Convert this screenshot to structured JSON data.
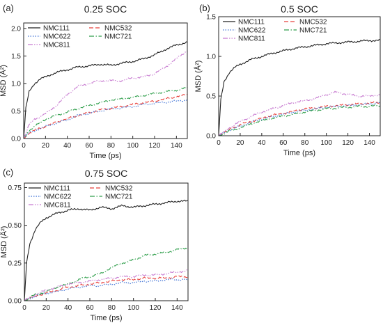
{
  "chart_data": [
    {
      "type": "line",
      "panel_label": "(a)",
      "title": "0.25 SOC",
      "xlabel": "Time (ps)",
      "ylabel": "MSD (Å²)",
      "xlim": [
        0,
        150
      ],
      "ylim": [
        0,
        2.1
      ],
      "xticks": [
        0,
        20,
        40,
        60,
        80,
        100,
        120,
        140
      ],
      "yticks": [
        0.0,
        0.5,
        1.0,
        1.5,
        2.0
      ],
      "ytick_labels": [
        "0.0",
        "0.5",
        "1.0",
        "1.5",
        "2.0"
      ],
      "legend_position": "top-left, 2 columns",
      "series": [
        {
          "name": "NMC111",
          "color": "#222222",
          "style": "solid",
          "x": [
            0,
            2,
            5,
            10,
            15,
            20,
            30,
            40,
            50,
            60,
            70,
            80,
            90,
            100,
            110,
            120,
            130,
            140,
            150
          ],
          "y": [
            0.0,
            0.55,
            0.85,
            1.0,
            1.08,
            1.12,
            1.2,
            1.25,
            1.3,
            1.32,
            1.35,
            1.33,
            1.37,
            1.4,
            1.45,
            1.52,
            1.62,
            1.7,
            1.75
          ]
        },
        {
          "name": "NMC532",
          "color": "#e8413c",
          "style": "dash",
          "x": [
            0,
            5,
            10,
            20,
            30,
            40,
            50,
            60,
            70,
            80,
            90,
            100,
            110,
            120,
            130,
            140,
            150
          ],
          "y": [
            0.0,
            0.1,
            0.15,
            0.22,
            0.3,
            0.36,
            0.42,
            0.47,
            0.52,
            0.55,
            0.58,
            0.62,
            0.65,
            0.68,
            0.72,
            0.76,
            0.8
          ]
        },
        {
          "name": "NMC622",
          "color": "#3b6fd4",
          "style": "dot",
          "x": [
            0,
            5,
            10,
            20,
            30,
            40,
            50,
            60,
            70,
            80,
            90,
            100,
            110,
            120,
            130,
            140,
            150
          ],
          "y": [
            0.0,
            0.1,
            0.14,
            0.22,
            0.28,
            0.34,
            0.42,
            0.46,
            0.5,
            0.54,
            0.56,
            0.58,
            0.62,
            0.64,
            0.66,
            0.68,
            0.7
          ]
        },
        {
          "name": "NMC721",
          "color": "#2e9e4a",
          "style": "dashdot",
          "x": [
            0,
            5,
            10,
            20,
            30,
            40,
            50,
            60,
            70,
            80,
            90,
            100,
            110,
            120,
            130,
            140,
            150
          ],
          "y": [
            0.0,
            0.15,
            0.22,
            0.35,
            0.42,
            0.48,
            0.55,
            0.6,
            0.65,
            0.7,
            0.72,
            0.75,
            0.78,
            0.82,
            0.85,
            0.88,
            0.92
          ]
        },
        {
          "name": "NMC811",
          "color": "#c77ad0",
          "style": "dashdotdot",
          "x": [
            0,
            5,
            10,
            20,
            30,
            40,
            50,
            60,
            70,
            80,
            90,
            100,
            110,
            120,
            130,
            140,
            150
          ],
          "y": [
            0.0,
            0.25,
            0.35,
            0.45,
            0.6,
            0.8,
            0.95,
            1.0,
            1.05,
            1.05,
            1.05,
            1.1,
            1.12,
            1.18,
            1.3,
            1.45,
            1.6
          ]
        }
      ]
    },
    {
      "type": "line",
      "panel_label": "(b)",
      "title": "0.5 SOC",
      "xlabel": "Time (ps)",
      "ylabel": "MSD (Å²)",
      "xlim": [
        0,
        150
      ],
      "ylim": [
        0,
        1.5
      ],
      "xticks": [
        0,
        20,
        40,
        60,
        80,
        100,
        120,
        140
      ],
      "yticks": [
        0.0,
        0.5,
        1.0,
        1.5
      ],
      "ytick_labels": [
        "0.0",
        "0.5",
        "1.0",
        "1.5"
      ],
      "legend_position": "top-left, 2 columns",
      "series": [
        {
          "name": "NMC111",
          "color": "#222222",
          "style": "solid",
          "x": [
            0,
            2,
            5,
            10,
            15,
            20,
            30,
            40,
            50,
            60,
            70,
            80,
            90,
            100,
            110,
            120,
            130,
            140,
            150
          ],
          "y": [
            0.0,
            0.45,
            0.68,
            0.8,
            0.86,
            0.9,
            0.96,
            1.0,
            1.04,
            1.07,
            1.1,
            1.12,
            1.14,
            1.16,
            1.17,
            1.18,
            1.19,
            1.2,
            1.2
          ]
        },
        {
          "name": "NMC532",
          "color": "#e8413c",
          "style": "dash",
          "x": [
            0,
            10,
            20,
            30,
            40,
            50,
            60,
            70,
            80,
            90,
            100,
            110,
            120,
            130,
            140,
            150
          ],
          "y": [
            0.0,
            0.08,
            0.14,
            0.18,
            0.22,
            0.26,
            0.28,
            0.31,
            0.34,
            0.35,
            0.37,
            0.38,
            0.39,
            0.4,
            0.41,
            0.42
          ]
        },
        {
          "name": "NMC622",
          "color": "#3b6fd4",
          "style": "dot",
          "x": [
            0,
            10,
            20,
            30,
            40,
            50,
            60,
            70,
            80,
            90,
            100,
            110,
            120,
            130,
            140,
            150
          ],
          "y": [
            0.0,
            0.07,
            0.12,
            0.17,
            0.21,
            0.24,
            0.27,
            0.3,
            0.32,
            0.34,
            0.36,
            0.37,
            0.38,
            0.39,
            0.4,
            0.42
          ]
        },
        {
          "name": "NMC721",
          "color": "#2e9e4a",
          "style": "dashdot",
          "x": [
            0,
            10,
            20,
            30,
            40,
            50,
            60,
            70,
            80,
            90,
            100,
            110,
            120,
            130,
            140,
            150
          ],
          "y": [
            0.0,
            0.06,
            0.1,
            0.15,
            0.19,
            0.22,
            0.25,
            0.27,
            0.3,
            0.32,
            0.34,
            0.35,
            0.36,
            0.37,
            0.37,
            0.38
          ]
        },
        {
          "name": "NMC811",
          "color": "#c77ad0",
          "style": "dashdotdot",
          "x": [
            0,
            10,
            20,
            30,
            40,
            50,
            60,
            70,
            80,
            90,
            100,
            110,
            120,
            130,
            140,
            150
          ],
          "y": [
            0.0,
            0.1,
            0.18,
            0.24,
            0.3,
            0.34,
            0.38,
            0.42,
            0.44,
            0.47,
            0.52,
            0.55,
            0.52,
            0.5,
            0.5,
            0.52
          ]
        }
      ]
    },
    {
      "type": "line",
      "panel_label": "(c)",
      "title": "0.75 SOC",
      "xlabel": "Time (ps)",
      "ylabel": "MSD (Å²)",
      "xlim": [
        0,
        150
      ],
      "ylim": [
        0,
        0.78
      ],
      "xticks": [
        0,
        20,
        40,
        60,
        80,
        100,
        120,
        140
      ],
      "yticks": [
        0.0,
        0.25,
        0.5,
        0.75
      ],
      "ytick_labels": [
        "0.00",
        "0.25",
        "0.50",
        "0.75"
      ],
      "legend_position": "top-left, 2 columns",
      "series": [
        {
          "name": "NMC111",
          "color": "#222222",
          "style": "solid",
          "x": [
            0,
            2,
            5,
            10,
            15,
            20,
            30,
            40,
            50,
            60,
            70,
            80,
            90,
            100,
            110,
            120,
            130,
            140,
            150
          ],
          "y": [
            0.0,
            0.25,
            0.38,
            0.47,
            0.52,
            0.55,
            0.58,
            0.6,
            0.61,
            0.6,
            0.62,
            0.61,
            0.63,
            0.62,
            0.63,
            0.64,
            0.65,
            0.66,
            0.66
          ]
        },
        {
          "name": "NMC532",
          "color": "#e8413c",
          "style": "dash",
          "x": [
            0,
            10,
            20,
            30,
            40,
            50,
            60,
            70,
            80,
            90,
            100,
            110,
            120,
            130,
            140,
            150
          ],
          "y": [
            0.0,
            0.03,
            0.05,
            0.07,
            0.09,
            0.1,
            0.11,
            0.12,
            0.13,
            0.14,
            0.14,
            0.15,
            0.15,
            0.15,
            0.16,
            0.16
          ]
        },
        {
          "name": "NMC622",
          "color": "#3b6fd4",
          "style": "dot",
          "x": [
            0,
            10,
            20,
            30,
            40,
            50,
            60,
            70,
            80,
            90,
            100,
            110,
            120,
            130,
            140,
            150
          ],
          "y": [
            0.0,
            0.03,
            0.05,
            0.06,
            0.08,
            0.09,
            0.1,
            0.1,
            0.11,
            0.12,
            0.12,
            0.13,
            0.13,
            0.14,
            0.14,
            0.14
          ]
        },
        {
          "name": "NMC721",
          "color": "#2e9e4a",
          "style": "dashdot",
          "x": [
            0,
            10,
            20,
            30,
            40,
            50,
            60,
            70,
            80,
            90,
            100,
            110,
            120,
            130,
            140,
            150
          ],
          "y": [
            0.0,
            0.04,
            0.06,
            0.09,
            0.11,
            0.14,
            0.16,
            0.18,
            0.22,
            0.25,
            0.27,
            0.3,
            0.31,
            0.32,
            0.34,
            0.35
          ]
        },
        {
          "name": "NMC811",
          "color": "#c77ad0",
          "style": "dashdotdot",
          "x": [
            0,
            10,
            20,
            30,
            40,
            50,
            60,
            70,
            80,
            90,
            100,
            110,
            120,
            130,
            140,
            150
          ],
          "y": [
            0.0,
            0.04,
            0.07,
            0.09,
            0.11,
            0.12,
            0.13,
            0.14,
            0.15,
            0.16,
            0.16,
            0.17,
            0.17,
            0.18,
            0.19,
            0.2
          ]
        }
      ]
    }
  ]
}
